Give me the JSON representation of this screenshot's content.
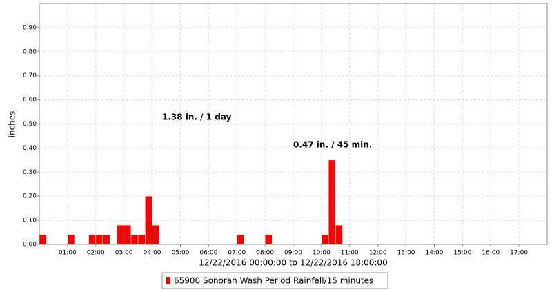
{
  "chart_data": {
    "type": "bar",
    "x_label": "12/22/2016 00:00:00 to 12/22/2016 18:00:00",
    "y_label": "inches",
    "annotations": [
      "1.38 in. / 1 day",
      "0.47 in. / 45 min."
    ],
    "x": [
      0,
      1,
      1.75,
      2,
      2.25,
      2.75,
      3,
      3.25,
      3.5,
      3.75,
      4,
      7,
      8,
      10,
      10.25,
      10.5
    ],
    "series": [
      {
        "name": "65900 Sonoran Wash Period Rainfall/15 minutes",
        "color": "#ff0000",
        "values": [
          0.04,
          0.04,
          0.04,
          0.04,
          0.04,
          0.08,
          0.08,
          0.04,
          0.04,
          0.2,
          0.08,
          0.04,
          0.04,
          0.04,
          0.35,
          0.08
        ]
      }
    ],
    "xlim": [
      0,
      18
    ],
    "ylim": [
      0,
      1.0
    ],
    "xticks": [
      {
        "value": 1,
        "label": "01:00"
      },
      {
        "value": 2,
        "label": "02:00"
      },
      {
        "value": 3,
        "label": "03:00"
      },
      {
        "value": 4,
        "label": "04:00"
      },
      {
        "value": 5,
        "label": "05:00"
      },
      {
        "value": 6,
        "label": "06:00"
      },
      {
        "value": 7,
        "label": "07:00"
      },
      {
        "value": 8,
        "label": "08:00"
      },
      {
        "value": 9,
        "label": "09:00"
      },
      {
        "value": 10,
        "label": "10:00"
      },
      {
        "value": 11,
        "label": "11:00"
      },
      {
        "value": 12,
        "label": "12:00"
      },
      {
        "value": 13,
        "label": "13:00"
      },
      {
        "value": 14,
        "label": "14:00"
      },
      {
        "value": 15,
        "label": "15:00"
      },
      {
        "value": 16,
        "label": "16:00"
      },
      {
        "value": 17,
        "label": "17:00"
      }
    ],
    "yticks": [
      {
        "value": 0,
        "label": "0.00"
      },
      {
        "value": 0.1,
        "label": "0.10"
      },
      {
        "value": 0.2,
        "label": "0.20"
      },
      {
        "value": 0.3,
        "label": "0.30"
      },
      {
        "value": 0.4,
        "label": "0.40"
      },
      {
        "value": 0.5,
        "label": "0.50"
      },
      {
        "value": 0.6,
        "label": "0.60"
      },
      {
        "value": 0.7,
        "label": "0.70"
      },
      {
        "value": 0.8,
        "label": "0.80"
      },
      {
        "value": 0.9,
        "label": "0.90"
      }
    ],
    "grid": true
  }
}
